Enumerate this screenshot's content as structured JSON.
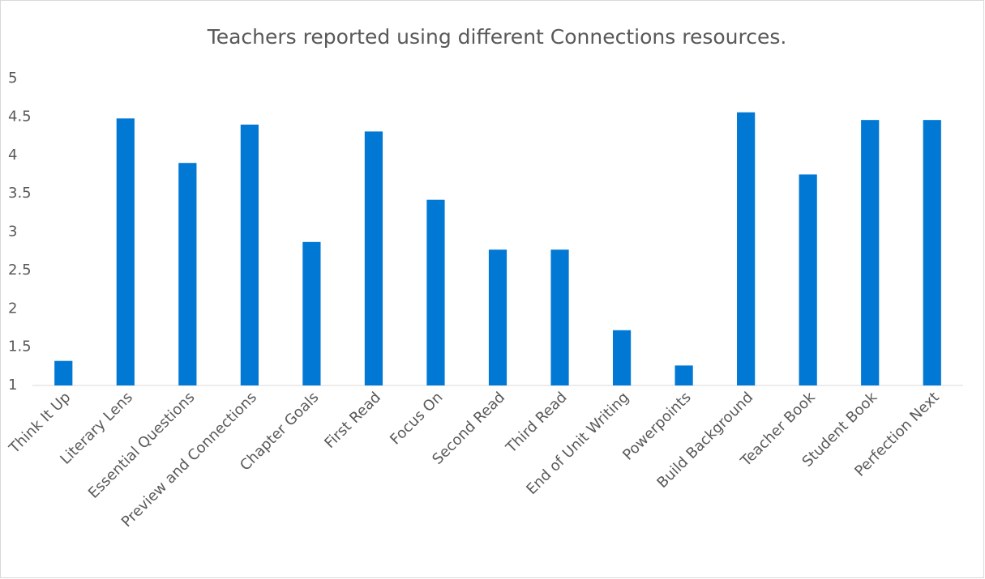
{
  "chart_data": {
    "type": "bar",
    "title": "Teachers reported using different Connections resources.",
    "categories": [
      "Think It Up",
      "Literary Lens",
      "Essential Questions",
      "Preview and Connections",
      "Chapter Goals",
      "First Read",
      "Focus On",
      "Second Read",
      "Third Read",
      "End of Unit Writing",
      "Powerpoints",
      "Build Background",
      "Teacher Book",
      "Student Book",
      "Perfection Next"
    ],
    "values": [
      1.32,
      4.48,
      3.9,
      4.4,
      2.87,
      4.31,
      3.42,
      2.77,
      2.77,
      1.72,
      1.26,
      4.56,
      3.75,
      4.46,
      4.46
    ],
    "color": "#0078d4",
    "ylim": [
      1,
      5
    ],
    "yticks": [
      1,
      1.5,
      2,
      2.5,
      3,
      3.5,
      4,
      4.5,
      5
    ],
    "grid": false
  }
}
